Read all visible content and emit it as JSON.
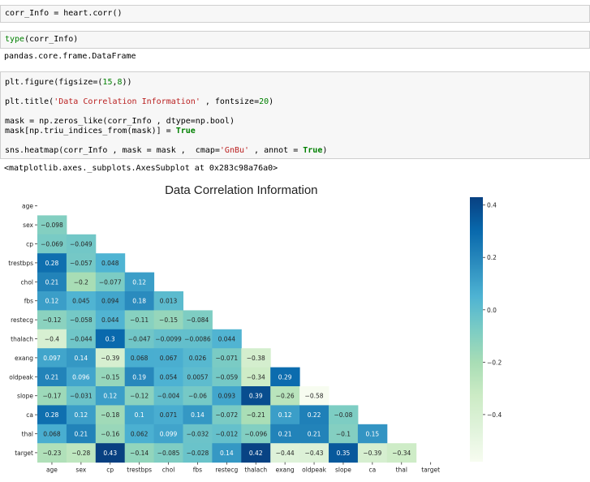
{
  "cells": {
    "c1": {
      "code": "corr_Info = heart.corr()"
    },
    "c2": {
      "code_pre": "type",
      "code_post": "(corr_Info)",
      "output": "pandas.core.frame.DataFrame"
    },
    "c3": {
      "line1_a": "plt.figure(figsize=(",
      "line1_n1": "15",
      "line1_b": ",",
      "line1_n2": "8",
      "line1_c": "))",
      "line2_a": "plt.title(",
      "line2_s": "'Data Correlation Information'",
      "line2_b": " , fontsize=",
      "line2_n": "20",
      "line2_c": ")",
      "line3": "mask = np.zeros_like(corr_Info , dtype=np.bool)",
      "line4_a": "mask[np.triu_indices_from(mask)] = ",
      "line4_kw": "True",
      "line5_a": "sns.heatmap(corr_Info , mask = mask ,  cmap=",
      "line5_s": "'GnBu'",
      "line5_b": " , annot = ",
      "line5_kw": "True",
      "line5_c": ")",
      "output": "<matplotlib.axes._subplots.AxesSubplot at 0x283c98a76a0>"
    }
  },
  "chart_data": {
    "type": "heatmap",
    "title": "Data Correlation Information",
    "variables": [
      "age",
      "sex",
      "cp",
      "trestbps",
      "chol",
      "fbs",
      "restecg",
      "thalach",
      "exang",
      "oldpeak",
      "slope",
      "ca",
      "thal",
      "target"
    ],
    "lower_triangle": [
      [],
      [
        -0.098
      ],
      [
        -0.069,
        -0.049
      ],
      [
        0.28,
        -0.057,
        0.048
      ],
      [
        0.21,
        -0.2,
        -0.077,
        0.12
      ],
      [
        0.12,
        0.045,
        0.094,
        0.18,
        0.013
      ],
      [
        -0.12,
        -0.058,
        0.044,
        -0.11,
        -0.15,
        -0.084
      ],
      [
        -0.4,
        -0.044,
        0.3,
        -0.047,
        -0.0099,
        -0.0086,
        0.044
      ],
      [
        0.097,
        0.14,
        -0.39,
        0.068,
        0.067,
        0.026,
        -0.071,
        -0.38
      ],
      [
        0.21,
        0.096,
        -0.15,
        0.19,
        0.054,
        0.0057,
        -0.059,
        -0.34,
        0.29
      ],
      [
        -0.17,
        -0.031,
        0.12,
        -0.12,
        -0.004,
        -0.06,
        0.093,
        0.39,
        -0.26,
        -0.58
      ],
      [
        0.28,
        0.12,
        -0.18,
        0.1,
        0.071,
        0.14,
        -0.072,
        -0.21,
        0.12,
        0.22,
        -0.08
      ],
      [
        0.068,
        0.21,
        -0.16,
        0.062,
        0.099,
        -0.032,
        -0.012,
        -0.096,
        0.21,
        0.21,
        -0.1,
        0.15
      ],
      [
        -0.23,
        -0.28,
        0.43,
        -0.14,
        -0.085,
        -0.028,
        0.14,
        0.42,
        -0.44,
        -0.43,
        0.35,
        -0.39,
        -0.34
      ]
    ],
    "cmap": "GnBu",
    "colorbar": {
      "vmin": -0.58,
      "vmax": 0.43,
      "ticks": [
        0.4,
        0.2,
        0.0,
        -0.2,
        -0.4
      ],
      "tick_labels": [
        "0.4",
        "0.2",
        "0.0",
        "−0.2",
        "−0.4"
      ]
    }
  }
}
